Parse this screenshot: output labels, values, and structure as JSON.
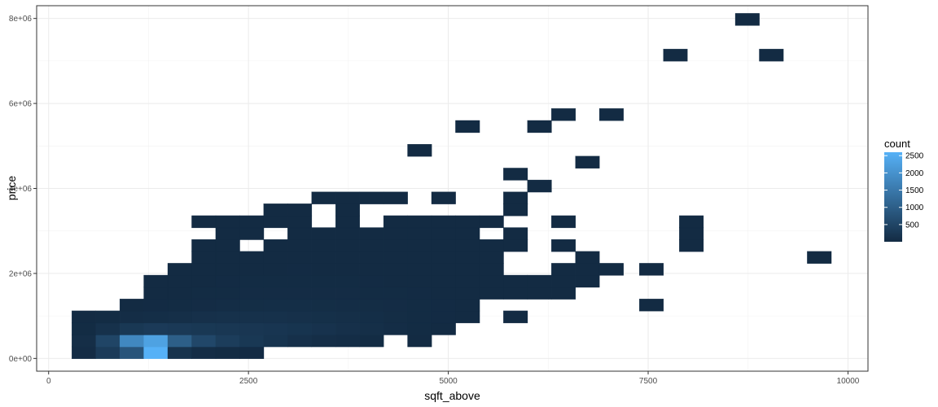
{
  "chart_data": {
    "type": "heatmap",
    "xlabel": "sqft_above",
    "ylabel": "price",
    "xlim": [
      -150,
      10250
    ],
    "ylim": [
      -300000,
      8300000
    ],
    "x_ticks": [
      0,
      2500,
      5000,
      7500,
      10000
    ],
    "x_tick_labels": [
      "0",
      "2500",
      "5000",
      "7500",
      "10000"
    ],
    "y_ticks": [
      0,
      2000000,
      4000000,
      6000000,
      8000000
    ],
    "y_tick_labels": [
      "0e+00",
      "2e+06",
      "4e+06",
      "6e+06",
      "8e+06"
    ],
    "grid": true,
    "bin_width": 298,
    "bin_height": 280000,
    "fill_scale": {
      "name": "count",
      "min": 1,
      "max": 2600,
      "low_color": "#132B43",
      "high_color": "#56B1F7",
      "breaks": [
        500,
        1000,
        1500,
        2000,
        2500
      ],
      "break_labels": [
        "500",
        "1000",
        "1500",
        "2000",
        "2500"
      ]
    },
    "bins": [
      [
        290,
        0,
        30
      ],
      [
        590,
        0,
        320
      ],
      [
        890,
        0,
        800
      ],
      [
        1190,
        0,
        2600
      ],
      [
        1490,
        0,
        150
      ],
      [
        1790,
        0,
        40
      ],
      [
        2090,
        0,
        20
      ],
      [
        2390,
        0,
        10
      ],
      [
        290,
        280000,
        60
      ],
      [
        590,
        280000,
        500
      ],
      [
        890,
        280000,
        1800
      ],
      [
        1190,
        280000,
        2300
      ],
      [
        1490,
        280000,
        1000
      ],
      [
        1790,
        280000,
        550
      ],
      [
        2090,
        280000,
        350
      ],
      [
        2390,
        280000,
        250
      ],
      [
        2690,
        280000,
        170
      ],
      [
        2990,
        280000,
        100
      ],
      [
        3290,
        280000,
        60
      ],
      [
        3590,
        280000,
        40
      ],
      [
        3890,
        280000,
        20
      ],
      [
        4490,
        280000,
        3
      ],
      [
        290,
        560000,
        15
      ],
      [
        590,
        560000,
        120
      ],
      [
        890,
        560000,
        250
      ],
      [
        1190,
        560000,
        300
      ],
      [
        1490,
        560000,
        280
      ],
      [
        1790,
        560000,
        250
      ],
      [
        2090,
        560000,
        230
      ],
      [
        2390,
        560000,
        220
      ],
      [
        2690,
        560000,
        200
      ],
      [
        2990,
        560000,
        170
      ],
      [
        3290,
        560000,
        140
      ],
      [
        3590,
        560000,
        100
      ],
      [
        3890,
        560000,
        70
      ],
      [
        4190,
        560000,
        40
      ],
      [
        4490,
        560000,
        20
      ],
      [
        4790,
        560000,
        5
      ],
      [
        290,
        840000,
        4
      ],
      [
        590,
        840000,
        15
      ],
      [
        890,
        840000,
        40
      ],
      [
        1190,
        840000,
        55
      ],
      [
        1490,
        840000,
        80
      ],
      [
        1790,
        840000,
        100
      ],
      [
        2090,
        840000,
        110
      ],
      [
        2390,
        840000,
        115
      ],
      [
        2690,
        840000,
        110
      ],
      [
        2990,
        840000,
        100
      ],
      [
        3290,
        840000,
        90
      ],
      [
        3590,
        840000,
        75
      ],
      [
        3890,
        840000,
        55
      ],
      [
        4190,
        840000,
        35
      ],
      [
        4490,
        840000,
        20
      ],
      [
        4790,
        840000,
        10
      ],
      [
        5090,
        840000,
        4
      ],
      [
        5690,
        840000,
        1
      ],
      [
        890,
        1120000,
        5
      ],
      [
        1190,
        1120000,
        10
      ],
      [
        1490,
        1120000,
        20
      ],
      [
        1790,
        1120000,
        30
      ],
      [
        2090,
        1120000,
        40
      ],
      [
        2390,
        1120000,
        50
      ],
      [
        2690,
        1120000,
        55
      ],
      [
        2990,
        1120000,
        55
      ],
      [
        3290,
        1120000,
        50
      ],
      [
        3590,
        1120000,
        45
      ],
      [
        3890,
        1120000,
        35
      ],
      [
        4190,
        1120000,
        25
      ],
      [
        4490,
        1120000,
        15
      ],
      [
        4790,
        1120000,
        10
      ],
      [
        5090,
        1120000,
        5
      ],
      [
        7390,
        1120000,
        1
      ],
      [
        1190,
        1400000,
        3
      ],
      [
        1490,
        1400000,
        8
      ],
      [
        1790,
        1400000,
        15
      ],
      [
        2090,
        1400000,
        20
      ],
      [
        2390,
        1400000,
        25
      ],
      [
        2690,
        1400000,
        30
      ],
      [
        2990,
        1400000,
        30
      ],
      [
        3290,
        1400000,
        28
      ],
      [
        3590,
        1400000,
        25
      ],
      [
        3890,
        1400000,
        20
      ],
      [
        4190,
        1400000,
        15
      ],
      [
        4490,
        1400000,
        10
      ],
      [
        4790,
        1400000,
        7
      ],
      [
        5090,
        1400000,
        4
      ],
      [
        5390,
        1400000,
        2
      ],
      [
        5690,
        1400000,
        2
      ],
      [
        5990,
        1400000,
        1
      ],
      [
        6290,
        1400000,
        1
      ],
      [
        1190,
        1680000,
        1
      ],
      [
        1490,
        1680000,
        3
      ],
      [
        1790,
        1680000,
        6
      ],
      [
        2090,
        1680000,
        10
      ],
      [
        2390,
        1680000,
        12
      ],
      [
        2690,
        1680000,
        15
      ],
      [
        2990,
        1680000,
        15
      ],
      [
        3290,
        1680000,
        14
      ],
      [
        3590,
        1680000,
        12
      ],
      [
        3890,
        1680000,
        10
      ],
      [
        4190,
        1680000,
        8
      ],
      [
        4490,
        1680000,
        6
      ],
      [
        4790,
        1680000,
        4
      ],
      [
        5090,
        1680000,
        3
      ],
      [
        5390,
        1680000,
        2
      ],
      [
        5690,
        1680000,
        1
      ],
      [
        5990,
        1680000,
        1
      ],
      [
        6290,
        1680000,
        1
      ],
      [
        6590,
        1680000,
        1
      ],
      [
        1490,
        1960000,
        1
      ],
      [
        1790,
        1960000,
        3
      ],
      [
        2090,
        1960000,
        5
      ],
      [
        2390,
        1960000,
        7
      ],
      [
        2690,
        1960000,
        8
      ],
      [
        2990,
        1960000,
        9
      ],
      [
        3290,
        1960000,
        8
      ],
      [
        3590,
        1960000,
        7
      ],
      [
        3890,
        1960000,
        6
      ],
      [
        4190,
        1960000,
        5
      ],
      [
        4490,
        1960000,
        4
      ],
      [
        4790,
        1960000,
        3
      ],
      [
        5090,
        1960000,
        2
      ],
      [
        5390,
        1960000,
        1
      ],
      [
        6290,
        1960000,
        1
      ],
      [
        6590,
        1960000,
        1
      ],
      [
        6890,
        1960000,
        1
      ],
      [
        7390,
        1960000,
        1
      ],
      [
        1790,
        2240000,
        1
      ],
      [
        2090,
        2240000,
        2
      ],
      [
        2390,
        2240000,
        3
      ],
      [
        2690,
        2240000,
        4
      ],
      [
        2990,
        2240000,
        4
      ],
      [
        3290,
        2240000,
        4
      ],
      [
        3590,
        2240000,
        3
      ],
      [
        3890,
        2240000,
        3
      ],
      [
        4190,
        2240000,
        2
      ],
      [
        4490,
        2240000,
        2
      ],
      [
        4790,
        2240000,
        1
      ],
      [
        5090,
        2240000,
        1
      ],
      [
        5390,
        2240000,
        1
      ],
      [
        6590,
        2240000,
        1
      ],
      [
        9490,
        2240000,
        1
      ],
      [
        1790,
        2520000,
        1
      ],
      [
        2090,
        2520000,
        1
      ],
      [
        2690,
        2520000,
        2
      ],
      [
        2990,
        2520000,
        2
      ],
      [
        3290,
        2520000,
        2
      ],
      [
        3590,
        2520000,
        2
      ],
      [
        3890,
        2520000,
        2
      ],
      [
        4190,
        2520000,
        1
      ],
      [
        4490,
        2520000,
        1
      ],
      [
        4790,
        2520000,
        1
      ],
      [
        5090,
        2520000,
        1
      ],
      [
        5390,
        2520000,
        1
      ],
      [
        5690,
        2520000,
        1
      ],
      [
        6290,
        2520000,
        1
      ],
      [
        7890,
        2520000,
        1
      ],
      [
        2090,
        2800000,
        1
      ],
      [
        2390,
        2800000,
        1
      ],
      [
        2990,
        2800000,
        1
      ],
      [
        3290,
        2800000,
        1
      ],
      [
        3590,
        2800000,
        1
      ],
      [
        3890,
        2800000,
        1
      ],
      [
        4190,
        2800000,
        1
      ],
      [
        4490,
        2800000,
        1
      ],
      [
        4790,
        2800000,
        1
      ],
      [
        5090,
        2800000,
        1
      ],
      [
        5690,
        2800000,
        1
      ],
      [
        7890,
        2800000,
        1
      ],
      [
        1790,
        3080000,
        1
      ],
      [
        2090,
        3080000,
        1
      ],
      [
        2390,
        3080000,
        1
      ],
      [
        2690,
        3080000,
        1
      ],
      [
        2990,
        3080000,
        1
      ],
      [
        3590,
        3080000,
        1
      ],
      [
        4190,
        3080000,
        1
      ],
      [
        4490,
        3080000,
        1
      ],
      [
        4790,
        3080000,
        1
      ],
      [
        5090,
        3080000,
        1
      ],
      [
        5390,
        3080000,
        1
      ],
      [
        6290,
        3080000,
        1
      ],
      [
        7890,
        3080000,
        1
      ],
      [
        2690,
        3360000,
        1
      ],
      [
        2990,
        3360000,
        1
      ],
      [
        3590,
        3360000,
        1
      ],
      [
        5690,
        3360000,
        1
      ],
      [
        3290,
        3640000,
        1
      ],
      [
        3590,
        3640000,
        1
      ],
      [
        3890,
        3640000,
        1
      ],
      [
        4190,
        3640000,
        1
      ],
      [
        4790,
        3640000,
        1
      ],
      [
        5690,
        3640000,
        1
      ],
      [
        5990,
        3920000,
        1
      ],
      [
        5690,
        4200000,
        1
      ],
      [
        6590,
        4480000,
        1
      ],
      [
        4490,
        4760000,
        1
      ],
      [
        5090,
        5320000,
        1
      ],
      [
        5990,
        5320000,
        1
      ],
      [
        6290,
        5600000,
        1
      ],
      [
        6890,
        5600000,
        1
      ],
      [
        7690,
        7000000,
        1
      ],
      [
        8890,
        7000000,
        1
      ],
      [
        8590,
        7840000,
        1
      ]
    ]
  }
}
